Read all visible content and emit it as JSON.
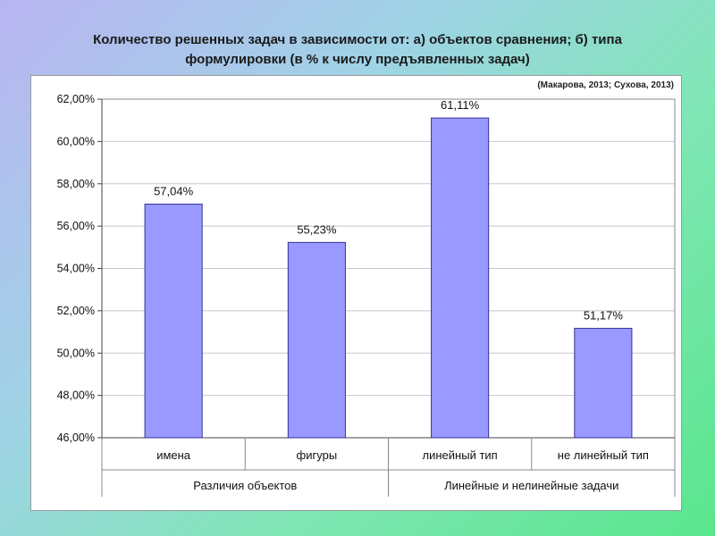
{
  "title": {
    "line1": "Количество решенных задач в зависимости от: а) объектов сравнения; б) типа",
    "line2": "формулировки (в % к числу предъявленных задач)"
  },
  "source": "(Макарова, 2013; Сухова, 2013)",
  "colors": {
    "bar": "#9999ff",
    "bar_stroke": "#333399",
    "grid": "#c8c8c8"
  },
  "chart_data": {
    "type": "bar",
    "title": "Количество решенных задач в зависимости от: а) объектов сравнения; б) типа формулировки (в % к числу предъявленных задач)",
    "categories": [
      "имена",
      "фигуры",
      "линейный тип",
      "не линейный тип"
    ],
    "values": [
      57.04,
      55.23,
      61.11,
      51.17
    ],
    "data_labels": [
      "57,04%",
      "55,23%",
      "61,11%",
      "51,17%"
    ],
    "groups": [
      {
        "label": "Различия объектов",
        "categories": [
          "имена",
          "фигуры"
        ]
      },
      {
        "label": "Линейные и нелинейные задачи",
        "categories": [
          "линейный тип",
          "не линейный тип"
        ]
      }
    ],
    "ylim": [
      46,
      62
    ],
    "yticks": [
      "46,00%",
      "48,00%",
      "50,00%",
      "52,00%",
      "54,00%",
      "56,00%",
      "58,00%",
      "60,00%",
      "62,00%"
    ],
    "grid": true,
    "legend": "none",
    "xlabel": "",
    "ylabel": ""
  }
}
